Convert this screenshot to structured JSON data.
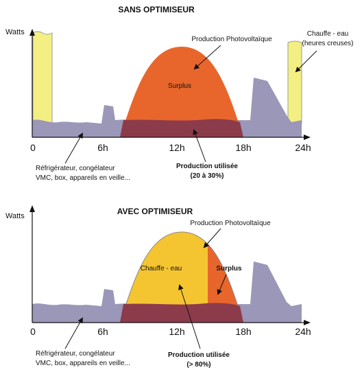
{
  "panels": [
    {
      "title": "SANS OPTIMISEUR",
      "y_label": "Watts",
      "x_labels": [
        "0",
        "6h",
        "12h",
        "18h",
        "24h"
      ],
      "pv_label": "Production Photovoltaïque",
      "surplus_label": "Surplus",
      "water_heater_label": [
        "Chauffe - eau",
        "(heures creuses)"
      ],
      "baseload_label": [
        "Réfrigérateur, congélateur",
        "VMC, box, appareils en veille..."
      ],
      "used_label": [
        "Production utilisée",
        "(20 à 30%)"
      ]
    },
    {
      "title": "AVEC OPTIMISEUR",
      "y_label": "Watts",
      "x_labels": [
        "0",
        "6h",
        "12h",
        "18h",
        "24h"
      ],
      "pv_label": "Production Photovoltaïque",
      "surplus_label": "Surplus",
      "water_heater_label": [
        "Chauffe - eau"
      ],
      "baseload_label": [
        "Réfrigérateur, congélateur",
        "VMC, box, appareils en veille..."
      ],
      "used_label": [
        "Production utilisée",
        "(> 80%)"
      ]
    }
  ]
}
